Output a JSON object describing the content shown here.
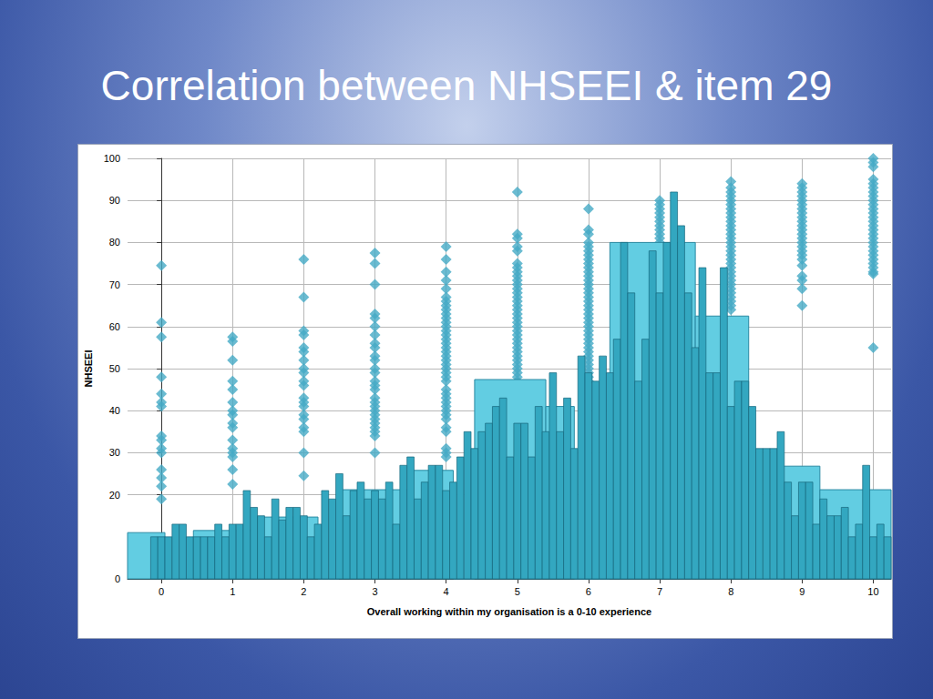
{
  "chart_data": {
    "type": "bar",
    "title": "Correlation between NHSEEI & item 29",
    "xlabel": "Overall working within my organisation is a 0-10 experience",
    "ylabel": "NHSEEI",
    "xlim": [
      -0.475,
      10.25
    ],
    "xticks": [
      0,
      1,
      2,
      3,
      4,
      5,
      6,
      7,
      8,
      9,
      10
    ],
    "ylim": [
      0,
      100
    ],
    "yticks": [
      0,
      20,
      30,
      40,
      50,
      60,
      70,
      80,
      90,
      100
    ],
    "grid": true,
    "series": [
      {
        "type": "scatter",
        "marker": "diamond",
        "color": "#45aac6",
        "x": [
          0,
          1,
          2,
          3,
          4,
          5,
          6,
          7,
          8,
          9,
          10
        ],
        "values": [
          [
            74.5,
            61,
            57.5,
            48,
            44,
            42,
            41,
            34,
            33,
            31,
            30,
            26,
            24,
            22,
            19
          ],
          [
            57.5,
            56.5,
            52,
            47,
            45,
            42,
            40,
            39,
            37,
            36,
            33,
            31,
            30,
            29,
            26,
            22.5
          ],
          [
            76,
            67,
            59,
            58,
            55,
            54,
            52,
            50,
            49,
            47,
            46,
            43,
            42,
            41,
            39,
            38,
            36,
            35,
            30,
            24.5
          ],
          [
            77.5,
            75,
            70,
            63,
            62,
            60,
            58,
            56,
            55,
            53,
            52,
            50,
            49,
            47,
            46,
            45,
            43,
            42,
            41,
            40,
            39,
            38,
            37,
            36,
            35,
            34,
            30
          ],
          [
            79,
            76,
            73,
            71,
            69,
            67,
            66,
            65,
            64,
            63,
            62,
            61,
            60,
            59,
            58,
            57,
            56,
            55,
            54,
            53,
            52,
            51,
            50,
            49,
            48,
            47,
            45,
            44,
            43,
            42,
            41,
            40,
            39,
            38,
            36,
            35,
            31,
            30,
            29
          ],
          [
            92,
            82,
            81,
            79,
            78,
            75,
            74,
            73,
            72,
            71,
            70,
            69,
            68,
            67,
            66,
            65,
            64,
            63,
            62,
            61,
            60,
            59,
            58,
            57,
            56,
            55,
            54,
            53,
            52,
            51,
            50,
            49,
            48,
            47,
            46,
            45,
            44,
            43,
            42,
            41,
            39,
            38
          ],
          [
            88,
            83,
            82,
            80,
            79,
            78,
            77,
            76,
            75,
            74,
            73,
            72,
            71,
            70,
            69,
            68,
            67,
            66,
            65,
            64,
            63,
            62,
            61,
            60,
            59,
            58,
            57,
            56,
            55,
            54,
            53,
            52,
            51,
            50,
            49,
            48,
            47
          ],
          [
            90,
            89,
            88,
            87,
            86,
            85,
            84,
            83,
            82,
            81,
            80,
            79,
            78,
            77,
            76,
            75,
            74,
            73,
            72,
            71,
            70,
            69,
            68,
            67,
            66,
            65,
            64,
            63,
            62,
            61,
            60,
            59,
            58,
            57,
            55,
            54,
            52,
            50,
            49
          ],
          [
            94.5,
            93,
            92,
            91,
            90,
            89,
            88,
            87,
            86,
            85,
            84,
            83,
            82,
            81,
            80,
            79,
            78,
            77,
            76,
            75,
            74,
            73,
            72,
            71,
            70,
            69,
            68,
            67,
            66,
            65,
            64
          ],
          [
            94,
            93,
            92,
            91,
            90,
            89,
            88,
            87,
            86,
            85,
            84,
            83,
            82,
            81,
            80,
            79,
            78,
            77,
            76,
            74.5,
            72,
            71,
            69,
            65
          ],
          [
            100,
            99,
            98,
            95,
            94,
            93,
            92,
            91,
            90,
            89,
            88,
            87,
            86,
            85,
            84,
            83,
            82,
            81,
            80,
            79,
            78,
            77,
            76,
            75,
            74,
            73,
            72.5,
            55
          ]
        ]
      },
      {
        "type": "histogram",
        "color": "#62cde2",
        "bins": [
          -0.475,
          0.05,
          0.45,
          1.3,
          2.2,
          2.5,
          3.5,
          4.1,
          4.4,
          5.4,
          5.8,
          6.3,
          7.5,
          8.25,
          8.7,
          9.25,
          10.25
        ],
        "values": [
          11,
          0,
          11.5,
          14.7,
          0,
          21.2,
          25.8,
          0,
          47.4,
          41,
          0,
          80,
          62.5,
          0,
          26.8,
          21.2
        ]
      },
      {
        "type": "bar",
        "color": "#33a7c0",
        "x": [
          -0.1,
          0,
          0.1,
          0.2,
          0.3,
          0.4,
          0.5,
          0.6,
          0.7,
          0.8,
          0.9,
          1,
          1.1,
          1.2,
          1.3,
          1.4,
          1.5,
          1.6,
          1.7,
          1.8,
          1.9,
          2,
          2.1,
          2.2,
          2.3,
          2.4,
          2.5,
          2.6,
          2.7,
          2.8,
          2.9,
          3,
          3.1,
          3.2,
          3.3,
          3.4,
          3.5,
          3.6,
          3.7,
          3.8,
          3.9,
          4,
          4.1,
          4.2,
          4.3,
          4.4,
          4.5,
          4.6,
          4.7,
          4.8,
          4.9,
          5,
          5.1,
          5.2,
          5.3,
          5.4,
          5.5,
          5.6,
          5.7,
          5.8,
          5.9,
          6,
          6.1,
          6.2,
          6.3,
          6.4,
          6.5,
          6.6,
          6.7,
          6.8,
          6.9,
          7,
          7.1,
          7.2,
          7.3,
          7.4,
          7.5,
          7.6,
          7.7,
          7.8,
          7.9,
          8,
          8.1,
          8.2,
          8.3,
          8.4,
          8.5,
          8.6,
          8.7,
          8.8,
          8.9,
          9,
          9.1,
          9.2,
          9.3,
          9.4,
          9.5,
          9.6,
          9.7,
          9.8,
          9.9,
          10,
          10.1,
          10.2
        ],
        "values": [
          10,
          10,
          10,
          13,
          13,
          10,
          10,
          10,
          10,
          13,
          10,
          13,
          13,
          21,
          17,
          15,
          10,
          19,
          14,
          17,
          17,
          15,
          10,
          13,
          21,
          19,
          25,
          15,
          21,
          23,
          19,
          21,
          19,
          23,
          13,
          27,
          29,
          19,
          23,
          27,
          27,
          21,
          23,
          29,
          35,
          31,
          35,
          37,
          41,
          43,
          29,
          37,
          37,
          29,
          41,
          35,
          49,
          35,
          43,
          31,
          53,
          49,
          47,
          53,
          49,
          57,
          80,
          68,
          47,
          57,
          78,
          68,
          80,
          92,
          84,
          68,
          55,
          74,
          49,
          49,
          74,
          41,
          47,
          47,
          41,
          31,
          31,
          31,
          35,
          23,
          15,
          23,
          23,
          13,
          19,
          15,
          15,
          17,
          10,
          13,
          27,
          10,
          13,
          10
        ]
      }
    ]
  }
}
